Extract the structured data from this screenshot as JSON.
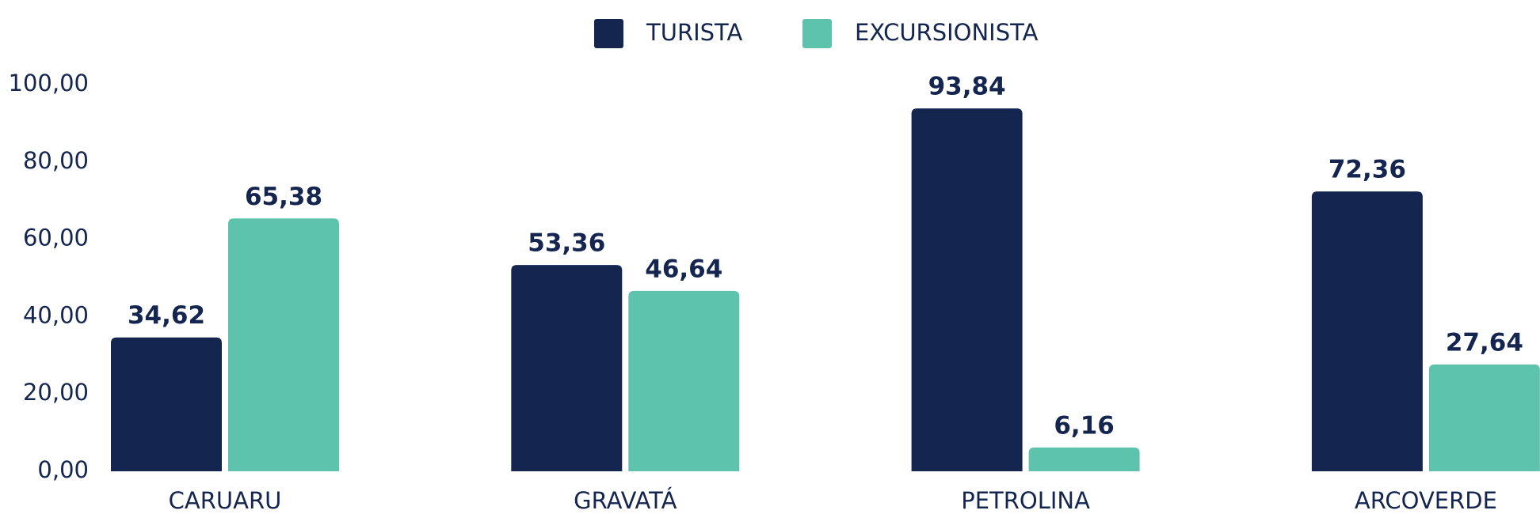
{
  "chart_data": {
    "type": "bar",
    "categories": [
      "CARUARU",
      "GRAVATÁ",
      "PETROLINA",
      "ARCOVERDE"
    ],
    "series": [
      {
        "name": "TURISTA",
        "color": "#14264f",
        "values": [
          34.62,
          53.36,
          93.84,
          72.36
        ],
        "value_labels": [
          "34,62",
          "53,36",
          "93,84",
          "72,36"
        ]
      },
      {
        "name": "EXCURSIONISTA",
        "color": "#5ec3ad",
        "values": [
          65.38,
          46.64,
          6.16,
          27.64
        ],
        "value_labels": [
          "65,38",
          "46,64",
          "6,16",
          "27,64"
        ]
      }
    ],
    "ylim": [
      0,
      100
    ],
    "yticks": [
      {
        "value": 0,
        "label": "0,00"
      },
      {
        "value": 20,
        "label": "20,00"
      },
      {
        "value": 40,
        "label": "40,00"
      },
      {
        "value": 60,
        "label": "60,00"
      },
      {
        "value": 80,
        "label": "80,00"
      },
      {
        "value": 100,
        "label": "100,00"
      }
    ],
    "legend": "top"
  }
}
